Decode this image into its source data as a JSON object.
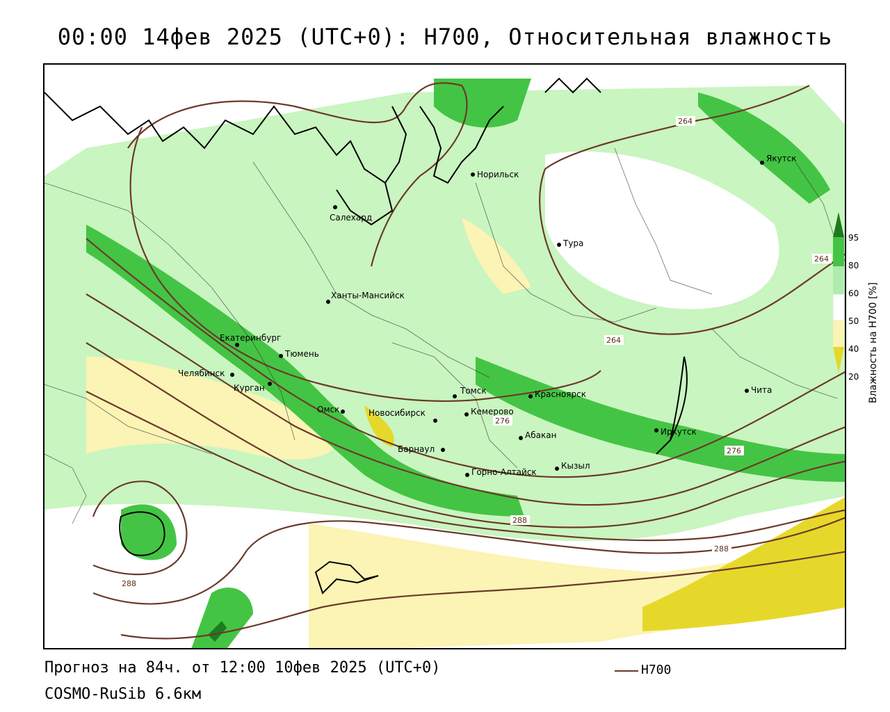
{
  "title": "00:00 14фев 2025 (UTC+0): H700, Относительная влажность",
  "footer": {
    "forecast": "Прогноз на 84ч. от 12:00 10фев 2025 (UTC+0)",
    "model": "COSMO-RuSib 6.6км",
    "line_legend": "H700"
  },
  "legend": {
    "title": "Влажность на H700 [%]",
    "ticks": [
      "95",
      "80",
      "60",
      "50",
      "40",
      "20"
    ],
    "colors": {
      "95": "#1e7a1e",
      "80": "#44c444",
      "60": "#aeecae",
      "50": "#ffffff",
      "40": "#fbf4b4",
      "20": "#e6d82a"
    }
  },
  "cities": [
    {
      "name": "Норильск"
    },
    {
      "name": "Якутск"
    },
    {
      "name": "Салехард"
    },
    {
      "name": "Тура"
    },
    {
      "name": "Ханты-Мансийск"
    },
    {
      "name": "Екатеринбург"
    },
    {
      "name": "Тюмень"
    },
    {
      "name": "Челябинск"
    },
    {
      "name": "Курган"
    },
    {
      "name": "Томск"
    },
    {
      "name": "Красноярск"
    },
    {
      "name": "Омск"
    },
    {
      "name": "Новосибирск"
    },
    {
      "name": "Кемерово"
    },
    {
      "name": "Абакан"
    },
    {
      "name": "Иркутск"
    },
    {
      "name": "Чита"
    },
    {
      "name": "Барнаул"
    },
    {
      "name": "Горно-Алтайск"
    },
    {
      "name": "Кызыл"
    }
  ],
  "contour_labels": [
    "264",
    "264",
    "264",
    "276",
    "276",
    "288",
    "288",
    "288"
  ],
  "colors": {
    "contour": "#6b3a2a",
    "coast": "#000000"
  }
}
